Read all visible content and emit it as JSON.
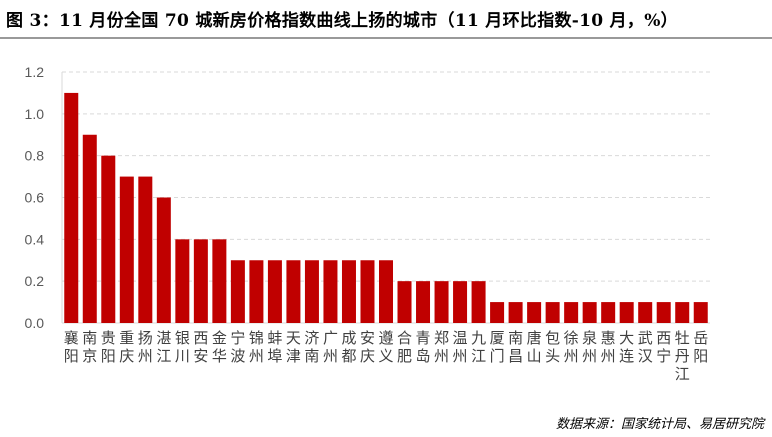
{
  "title": "图 3：11 月份全国 70 城新房价格指数曲线上扬的城市（11 月环比指数-10 月，%）",
  "source": "数据来源：国家统计局、易居研究院",
  "chart_data": {
    "type": "bar",
    "title": "图 3：11 月份全国 70 城新房价格指数曲线上扬的城市（11 月环比指数-10 月，%）",
    "categories": [
      "襄阳",
      "南京",
      "贵阳",
      "重庆",
      "扬州",
      "湛江",
      "银川",
      "西安",
      "金华",
      "宁波",
      "锦州",
      "蚌埠",
      "天津",
      "济南",
      "广州",
      "成都",
      "安庆",
      "遵义",
      "合肥",
      "青岛",
      "郑州",
      "温州",
      "九江",
      "厦门",
      "南昌",
      "唐山",
      "包头",
      "徐州",
      "泉州",
      "惠州",
      "大连",
      "武汉",
      "西宁",
      "牡丹江",
      "岳阳"
    ],
    "values": [
      1.1,
      0.9,
      0.8,
      0.7,
      0.7,
      0.6,
      0.4,
      0.4,
      0.4,
      0.3,
      0.3,
      0.3,
      0.3,
      0.3,
      0.3,
      0.3,
      0.3,
      0.3,
      0.2,
      0.2,
      0.2,
      0.2,
      0.2,
      0.1,
      0.1,
      0.1,
      0.1,
      0.1,
      0.1,
      0.1,
      0.1,
      0.1,
      0.1,
      0.1,
      0.1
    ],
    "yticks": [
      "0.0",
      "0.2",
      "0.4",
      "0.6",
      "0.8",
      "1.0",
      "1.2"
    ],
    "ylim": [
      0,
      1.2
    ],
    "grid": true,
    "bar_color": "#C00000",
    "xlabel": "",
    "ylabel": ""
  }
}
